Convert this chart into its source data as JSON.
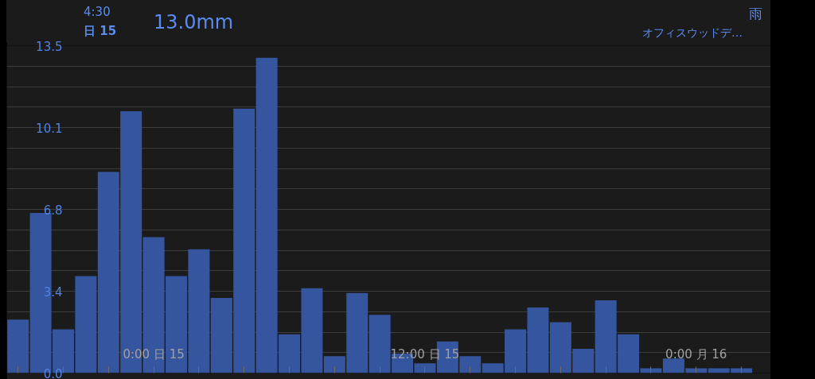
{
  "chart_data": {
    "type": "bar",
    "title": "雨",
    "subtitle": "オフィスウッドデ…",
    "annotations": [
      "4:30",
      "日 15",
      "13.0mm"
    ],
    "categories": [
      null,
      null,
      null,
      null,
      null,
      null,
      "0:00 日 15",
      null,
      null,
      null,
      null,
      null,
      null,
      null,
      null,
      null,
      null,
      null,
      "12:00 日 15",
      null,
      null,
      null,
      null,
      null,
      null,
      null,
      null,
      null,
      null,
      null,
      "0:00 月 16",
      null,
      null
    ],
    "values": [
      2.2,
      6.6,
      1.8,
      4.0,
      8.3,
      10.8,
      5.6,
      4.0,
      5.1,
      3.1,
      10.9,
      13.0,
      1.6,
      3.5,
      0.7,
      3.3,
      2.4,
      0.8,
      0.4,
      1.3,
      0.7,
      0.4,
      1.8,
      2.7,
      2.1,
      1.0,
      3.0,
      1.6,
      0.2,
      0.6,
      0.2,
      0.2,
      0.2
    ],
    "color": "#35569e",
    "ylim": [
      0,
      13.5
    ],
    "yticks": [
      {
        "value": 0,
        "label": "0.0"
      },
      {
        "value": 0.84375,
        "label": null
      },
      {
        "value": 1.6875,
        "label": null
      },
      {
        "value": 2.53125,
        "label": null
      },
      {
        "value": 3.375,
        "label": "3.4"
      },
      {
        "value": 4.21875,
        "label": null
      },
      {
        "value": 5.0625,
        "label": null
      },
      {
        "value": 5.90625,
        "label": null
      },
      {
        "value": 6.75,
        "label": "6.8"
      },
      {
        "value": 7.59375,
        "label": null
      },
      {
        "value": 8.4375,
        "label": null
      },
      {
        "value": 9.28125,
        "label": null
      },
      {
        "value": 10.125,
        "label": "10.1"
      },
      {
        "value": 10.96875,
        "label": null
      },
      {
        "value": 11.8125,
        "label": null
      },
      {
        "value": 12.65625,
        "label": null
      },
      {
        "value": 13.5,
        "label": "13.5"
      }
    ],
    "grid": "y"
  }
}
